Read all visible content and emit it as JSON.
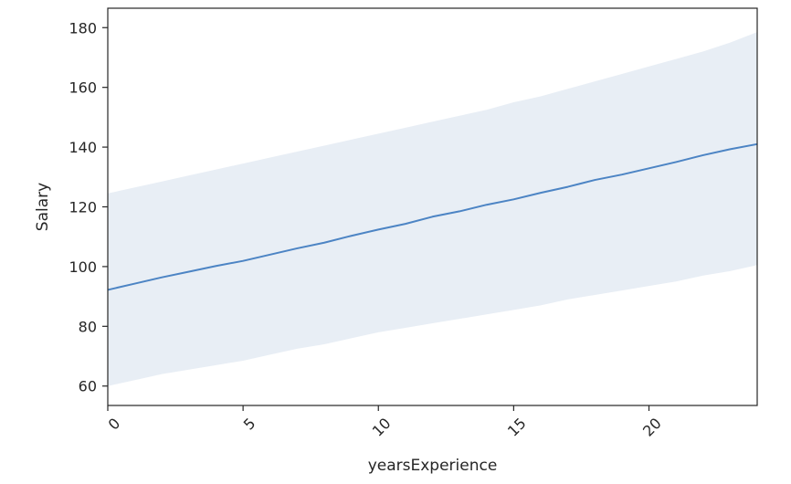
{
  "chart_data": {
    "type": "line",
    "title": "",
    "xlabel": "yearsExperience",
    "ylabel": "Salary",
    "xlim": [
      0,
      24
    ],
    "ylim": [
      53.5,
      186.5
    ],
    "x_ticks": [
      0,
      5,
      10,
      15,
      20
    ],
    "y_ticks": [
      60,
      80,
      100,
      120,
      140,
      160,
      180
    ],
    "grid": false,
    "legend": "none",
    "line_color": "#4c84c4",
    "band_color": "#e8eef5",
    "series": [
      {
        "x": [
          0,
          1,
          2,
          3,
          4,
          5,
          6,
          7,
          8,
          9,
          10,
          11,
          12,
          13,
          14,
          15,
          16,
          17,
          18,
          19,
          20,
          21,
          22,
          23,
          24
        ],
        "y": [
          92.2,
          94.3,
          96.4,
          98.3,
          100.2,
          101.9,
          104.0,
          106.1,
          108.0,
          110.3,
          112.4,
          114.3,
          116.7,
          118.5,
          120.7,
          122.5,
          124.7,
          126.7,
          129.0,
          130.8,
          132.9,
          135.0,
          137.3,
          139.3,
          141.0
        ],
        "lower": [
          60.0,
          62.0,
          64.0,
          65.5,
          67.0,
          68.5,
          70.5,
          72.5,
          74.0,
          76.0,
          78.0,
          79.5,
          81.0,
          82.5,
          84.0,
          85.5,
          87.0,
          89.0,
          90.5,
          92.0,
          93.5,
          95.0,
          97.0,
          98.5,
          100.5
        ],
        "upper": [
          124.5,
          126.5,
          128.5,
          130.5,
          132.5,
          134.5,
          136.5,
          138.5,
          140.5,
          142.5,
          144.5,
          146.5,
          148.5,
          150.5,
          152.5,
          155.0,
          157.0,
          159.5,
          162.0,
          164.5,
          167.0,
          169.5,
          172.0,
          175.0,
          178.5
        ]
      }
    ]
  }
}
